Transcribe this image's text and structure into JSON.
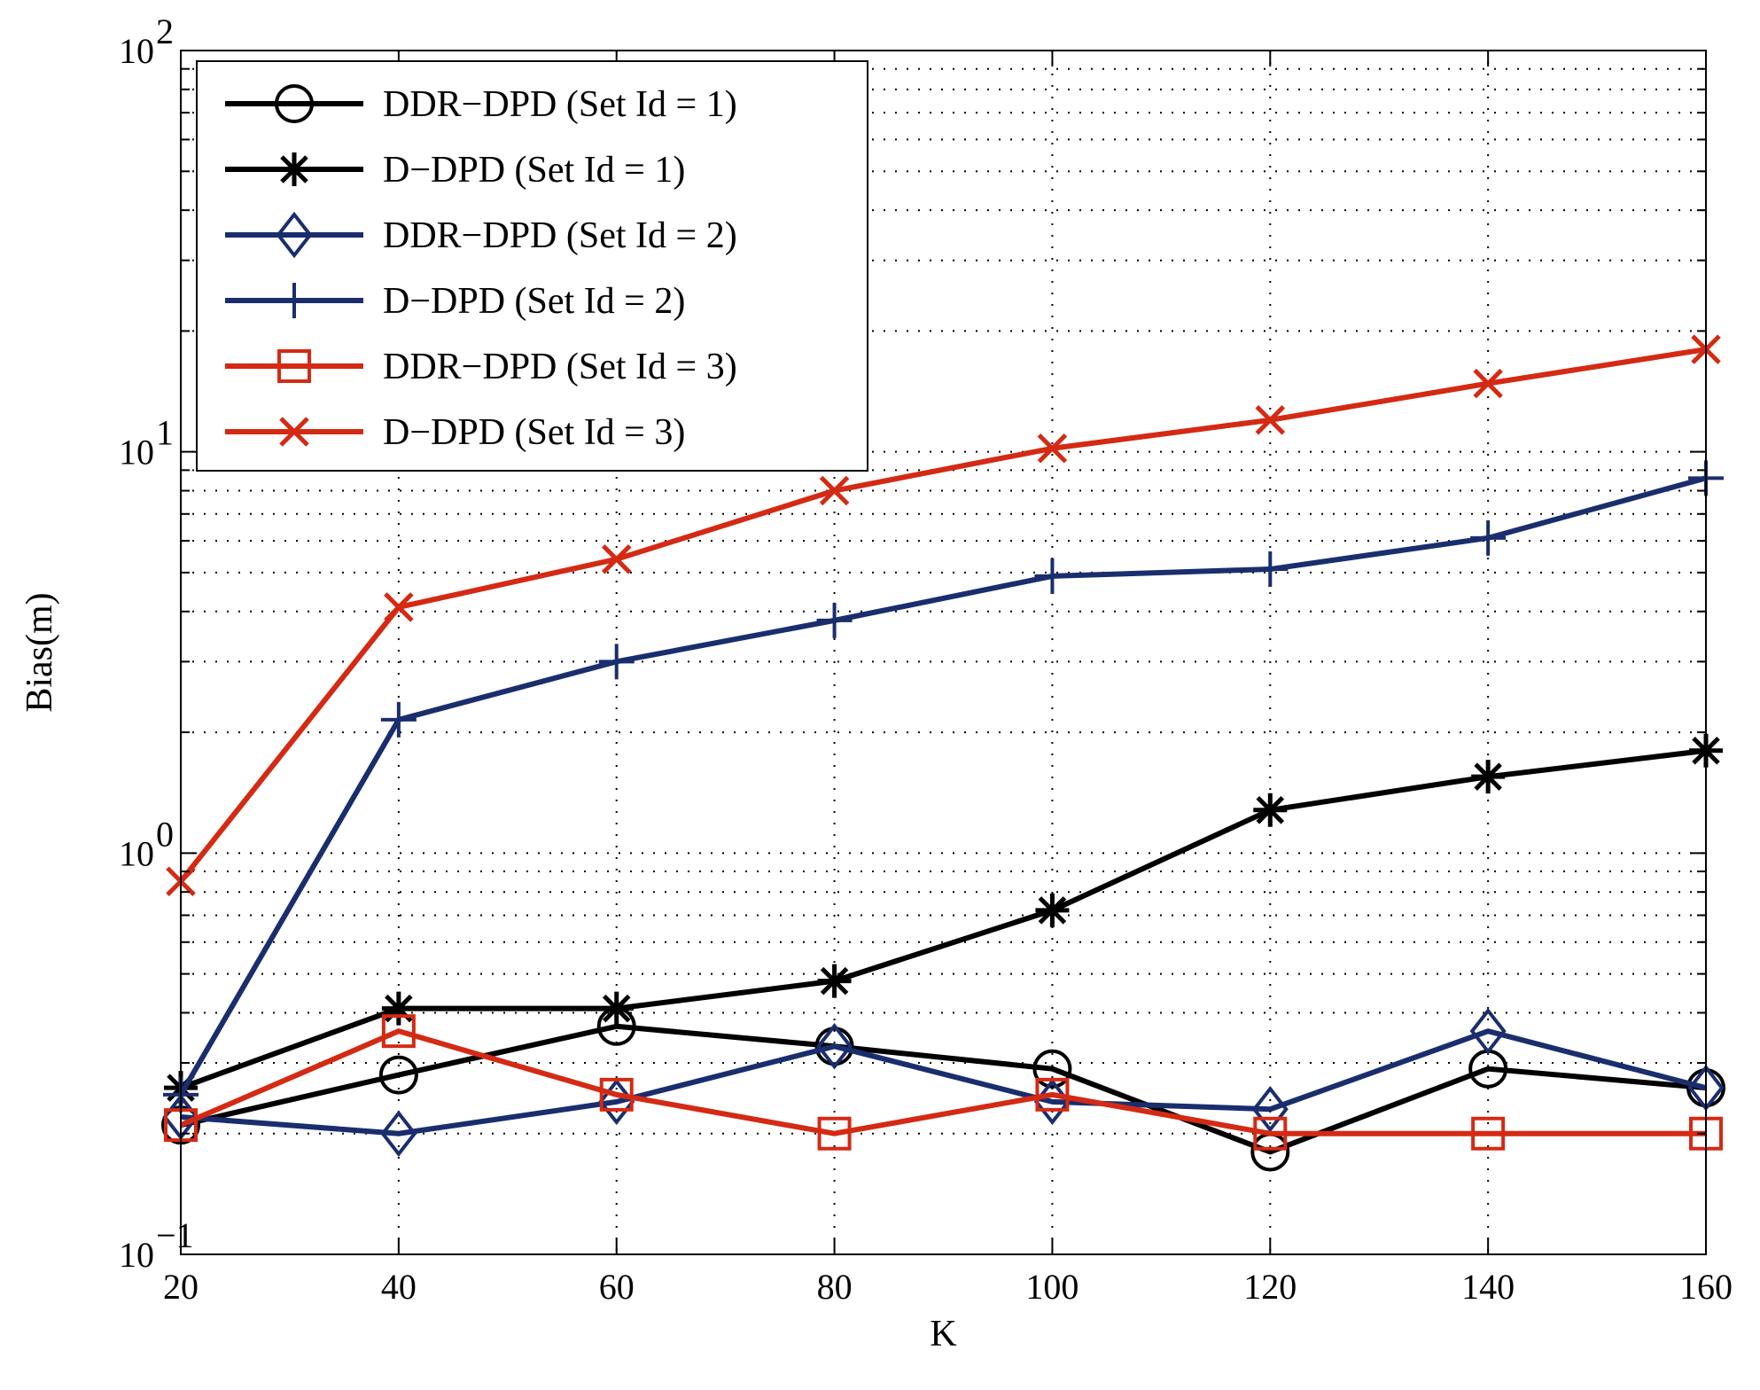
{
  "chart_data": {
    "type": "line",
    "title": "",
    "xlabel": "K",
    "ylabel": "Bias(m)",
    "x": [
      20,
      40,
      60,
      80,
      100,
      120,
      140,
      160
    ],
    "xlim": [
      20,
      160
    ],
    "ylim": [
      0.1,
      100
    ],
    "yscale": "log",
    "grid": true,
    "legend_position": "top-left",
    "x_ticks": [
      "20",
      "40",
      "60",
      "80",
      "100",
      "120",
      "140",
      "160"
    ],
    "y_ticks": [
      {
        "value": 0.1,
        "base": "10",
        "exp": "−1"
      },
      {
        "value": 1,
        "base": "10",
        "exp": "0"
      },
      {
        "value": 10,
        "base": "10",
        "exp": "1"
      },
      {
        "value": 100,
        "base": "10",
        "exp": "2"
      }
    ],
    "series": [
      {
        "name": "DDR−DPD (Set Id = 1)",
        "color": "#000000",
        "marker": "circle",
        "values": [
          0.21,
          0.28,
          0.37,
          0.33,
          0.29,
          0.18,
          0.29,
          0.26
        ]
      },
      {
        "name": "D−DPD (Set Id = 1)",
        "color": "#000000",
        "marker": "asterisk",
        "values": [
          0.26,
          0.41,
          0.41,
          0.48,
          0.72,
          1.28,
          1.55,
          1.8
        ]
      },
      {
        "name": "DDR−DPD (Set Id = 2)",
        "color": "#1a2e6e",
        "marker": "diamond",
        "values": [
          0.22,
          0.2,
          0.24,
          0.33,
          0.24,
          0.23,
          0.36,
          0.26
        ]
      },
      {
        "name": "D−DPD (Set Id = 2)",
        "color": "#1a2e6e",
        "marker": "plus",
        "values": [
          0.25,
          2.15,
          3.0,
          3.8,
          4.9,
          5.1,
          6.1,
          8.6
        ]
      },
      {
        "name": "DDR−DPD (Set Id = 3)",
        "color": "#d42a14",
        "marker": "square",
        "values": [
          0.21,
          0.36,
          0.25,
          0.2,
          0.25,
          0.2,
          0.2,
          0.2
        ]
      },
      {
        "name": "D−DPD (Set Id = 3)",
        "color": "#d42a14",
        "marker": "x",
        "values": [
          0.85,
          4.1,
          5.4,
          8.0,
          10.2,
          12.0,
          14.8,
          18.0
        ]
      }
    ]
  }
}
